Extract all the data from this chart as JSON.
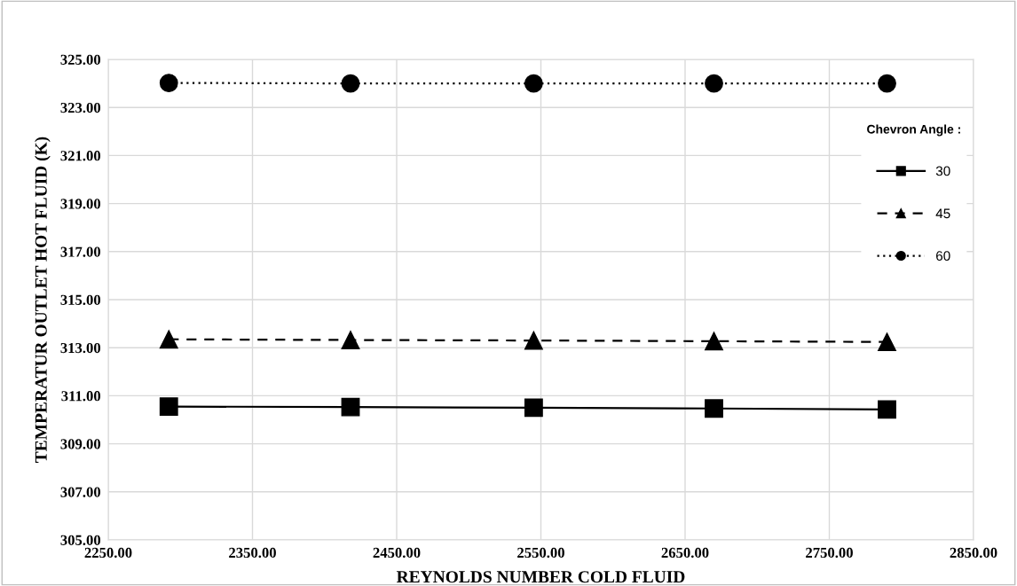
{
  "chart_data": {
    "type": "line",
    "xlabel": "REYNOLDS NUMBER COLD FLUID",
    "ylabel": "TEMPERATUR OUTLET HOT FLUID (K)",
    "legend_title": "Chevron Angle :",
    "legend": "right",
    "grid": true,
    "x": [
      2292,
      2418,
      2545,
      2670,
      2790
    ],
    "xlim": [
      2250,
      2850
    ],
    "xticks": [
      {
        "value": 2250,
        "label": "2250.00"
      },
      {
        "value": 2350,
        "label": "2350.00"
      },
      {
        "value": 2450,
        "label": "2450.00"
      },
      {
        "value": 2550,
        "label": "2550.00"
      },
      {
        "value": 2650,
        "label": "2650.00"
      },
      {
        "value": 2750,
        "label": "2750.00"
      },
      {
        "value": 2850,
        "label": "2850.00"
      }
    ],
    "ylim": [
      305,
      325
    ],
    "yticks": [
      {
        "value": 305,
        "label": "305.00"
      },
      {
        "value": 307,
        "label": "307.00"
      },
      {
        "value": 309,
        "label": "309.00"
      },
      {
        "value": 311,
        "label": "311.00"
      },
      {
        "value": 313,
        "label": "313.00"
      },
      {
        "value": 315,
        "label": "315.00"
      },
      {
        "value": 317,
        "label": "317.00"
      },
      {
        "value": 319,
        "label": "319.00"
      },
      {
        "value": 321,
        "label": "321.00"
      },
      {
        "value": 323,
        "label": "323.00"
      },
      {
        "value": 325,
        "label": "325.00"
      }
    ],
    "series": [
      {
        "name": "30",
        "color": "#000000",
        "marker": "square",
        "line_style": "solid",
        "values": [
          310.55,
          310.53,
          310.5,
          310.47,
          310.43
        ]
      },
      {
        "name": "45",
        "color": "#000000",
        "marker": "triangle",
        "line_style": "dashed",
        "values": [
          313.35,
          313.32,
          313.3,
          313.27,
          313.24
        ]
      },
      {
        "name": "60",
        "color": "#000000",
        "marker": "circle",
        "line_style": "dotted",
        "values": [
          324.02,
          324.0,
          324.0,
          324.0,
          324.0
        ]
      }
    ]
  }
}
